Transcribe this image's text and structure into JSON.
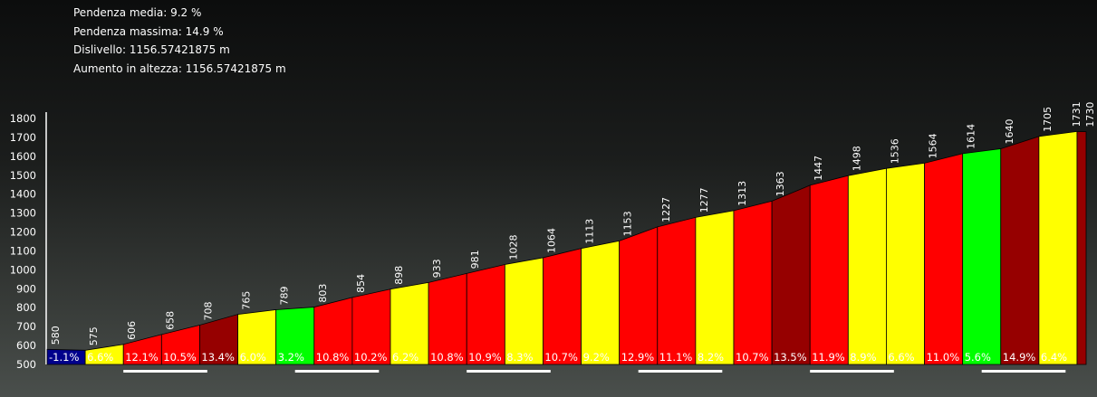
{
  "stats": [
    {
      "label": "Pendenza media",
      "value": "9.2 %"
    },
    {
      "label": "Pendenza massima",
      "value": "14.9 %"
    },
    {
      "label": "Dislivello",
      "value": "1156.57421875 m"
    },
    {
      "label": "Aumento in altezza",
      "value": "1156.57421875 m"
    }
  ],
  "chart_data": {
    "type": "area",
    "title": "",
    "xlabel": "",
    "ylabel": "",
    "ylim": [
      500,
      1800
    ],
    "yticks": [
      500,
      600,
      700,
      800,
      900,
      1000,
      1100,
      1200,
      1300,
      1400,
      1500,
      1600,
      1700,
      1800
    ],
    "elevations": [
      580,
      575,
      606,
      658,
      708,
      765,
      789,
      803,
      854,
      898,
      933,
      981,
      1028,
      1064,
      1113,
      1153,
      1227,
      1277,
      1313,
      1363,
      1447,
      1498,
      1536,
      1564,
      1614,
      1640,
      1705,
      1731,
      1730
    ],
    "gradients": [
      "-1.1%",
      "6.6%",
      "12.1%",
      "10.5%",
      "13.4%",
      "6.0%",
      "3.2%",
      "10.8%",
      "10.2%",
      "6.2%",
      "10.8%",
      "10.9%",
      "8.3%",
      "10.7%",
      "9.2%",
      "12.9%",
      "11.1%",
      "8.2%",
      "10.7%",
      "13.5%",
      "11.9%",
      "8.9%",
      "6.6%",
      "11.0%",
      "5.6%",
      "14.9%",
      "6.4%",
      ""
    ],
    "colors": {
      "descent": "#00008c",
      "moderate": "#ffff00",
      "easy": "#00ff00",
      "steep": "#ff0000",
      "very_steep": "#960000"
    }
  }
}
